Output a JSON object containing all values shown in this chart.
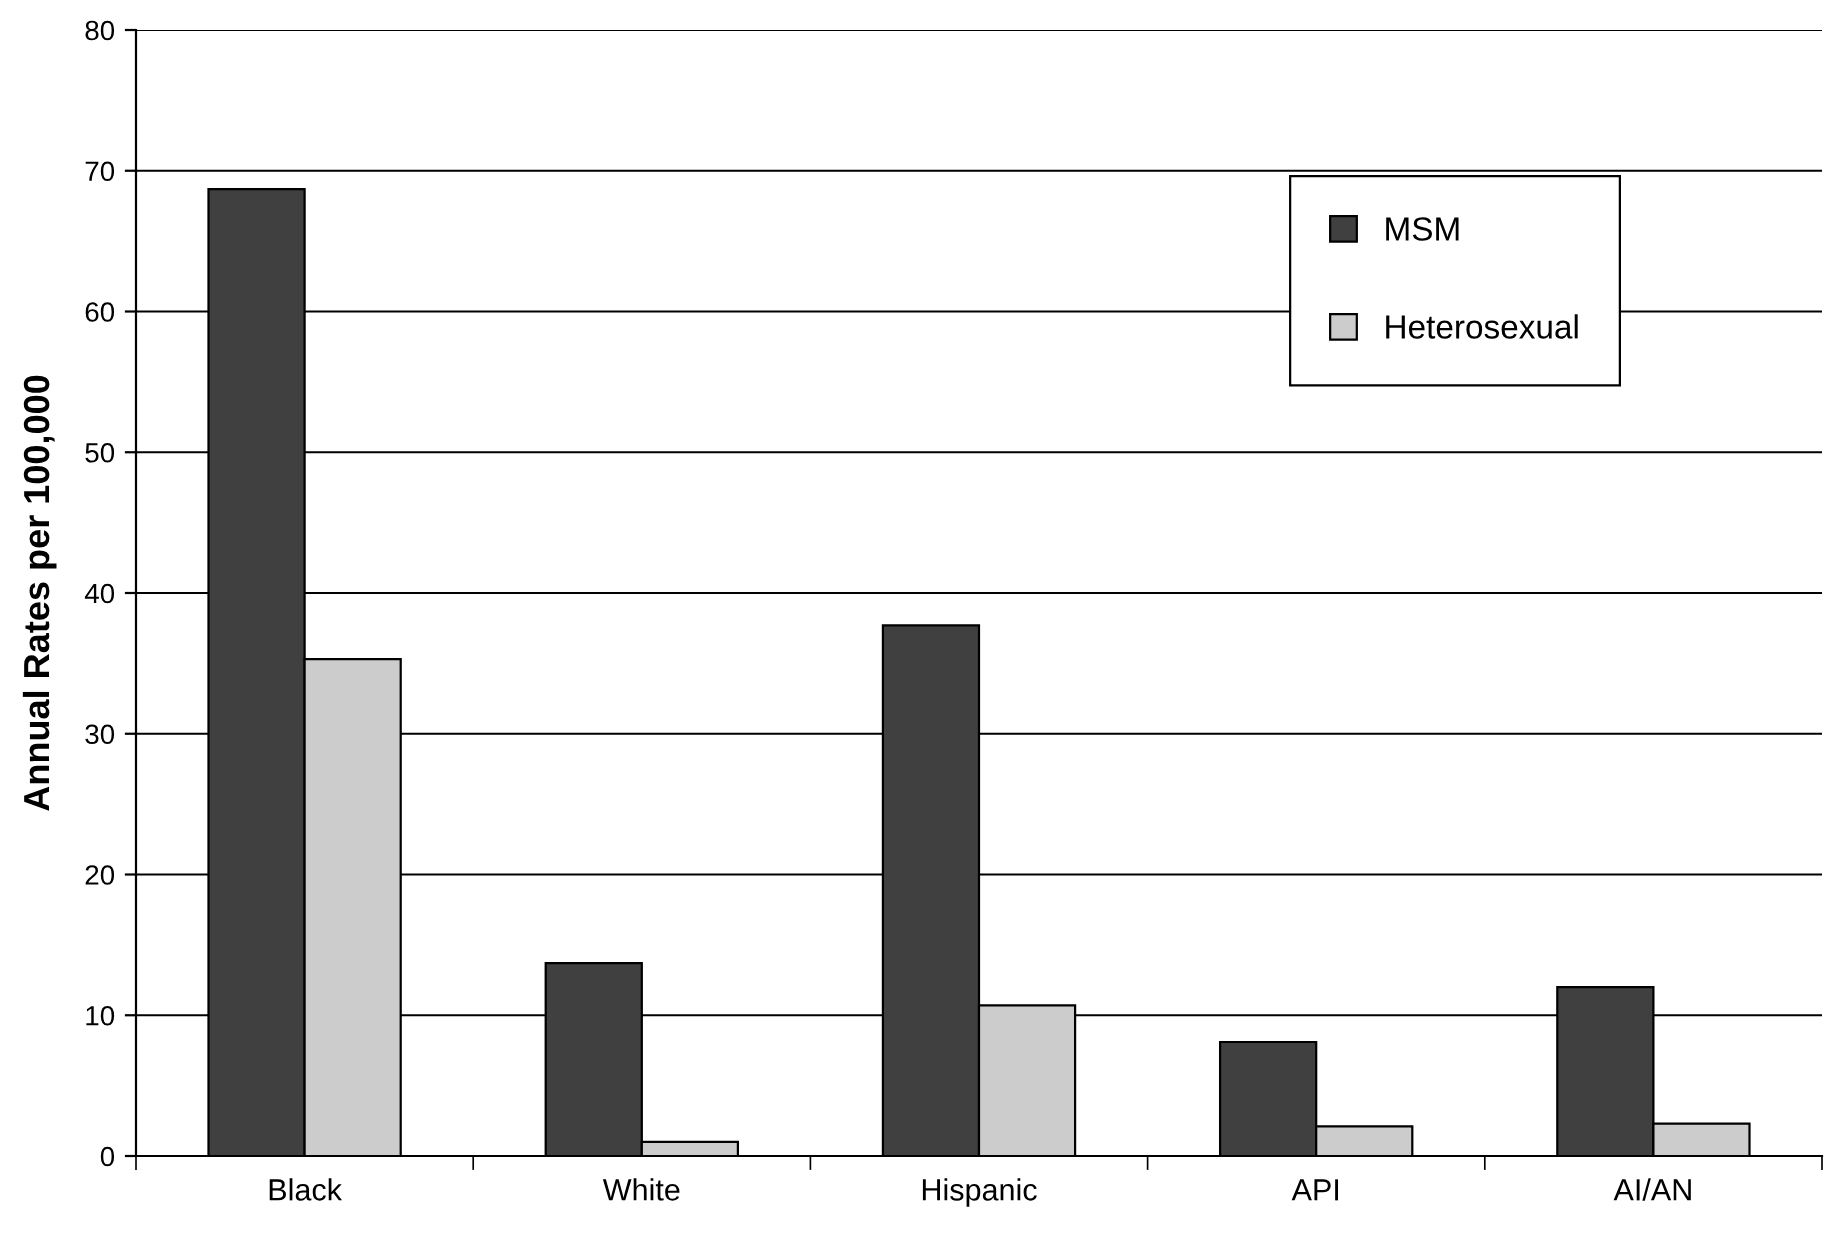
{
  "chart_data": {
    "type": "bar",
    "ylabel": "Annual Rates per 100,000",
    "categories": [
      "Black",
      "White",
      "Hispanic",
      "API",
      "AI/AN"
    ],
    "series": [
      {
        "name": "MSM",
        "color": "#404040",
        "values": [
          68.7,
          13.7,
          37.7,
          8.1,
          12.0
        ]
      },
      {
        "name": "Heterosexual",
        "color": "#cccccc",
        "values": [
          35.3,
          1.0,
          10.7,
          2.1,
          2.3
        ]
      }
    ],
    "ylim": [
      0,
      80
    ],
    "yticks": [
      0,
      10,
      20,
      30,
      40,
      50,
      60,
      70,
      80
    ],
    "grid": "y",
    "legend": "top right"
  }
}
